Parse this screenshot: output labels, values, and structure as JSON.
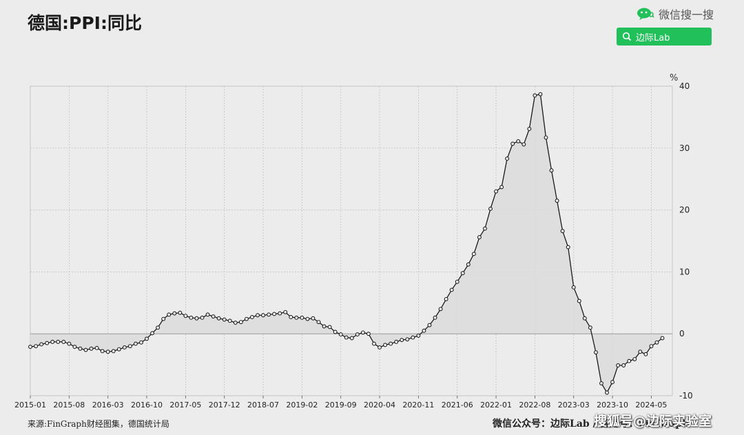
{
  "header": {
    "title": "德国:PPI:同比",
    "wechat_text": "微信搜一搜",
    "search_label": "边际Lab"
  },
  "footer": {
    "source": "来源:FinGraph财经图集，德国统计局",
    "right_text": "微信公众号：边际Lab / 备用号：FinGraph",
    "watermark": "搜狐号@边际实验室"
  },
  "colors": {
    "line": "#1a1a1a",
    "fill": "#dcdcdc",
    "grid": "#bdbdbd",
    "zero": "#9a9a9a",
    "brand_green": "#22c05a"
  },
  "chart_data": {
    "type": "line",
    "title": "德国:PPI:同比",
    "ylabel": "%",
    "y_position": "right",
    "grid": true,
    "fill_to_zero": true,
    "markers": true,
    "xlim": [
      2015.0,
      2024.65
    ],
    "ylim": [
      -10,
      40
    ],
    "yticks": [
      -10,
      0,
      10,
      20,
      30,
      40
    ],
    "xticks": [
      "2015-01",
      "2015-08",
      "2016-03",
      "2016-10",
      "2017-05",
      "2017-12",
      "2018-07",
      "2019-02",
      "2019-09",
      "2020-04",
      "2020-11",
      "2021-06",
      "2022-01",
      "2022-08",
      "2023-03",
      "2023-10",
      "2024-05"
    ],
    "start": "2015-01",
    "series": [
      {
        "values": [
          -2.1,
          -2.0,
          -1.7,
          -1.5,
          -1.3,
          -1.3,
          -1.3,
          -1.6,
          -2.1,
          -2.4,
          -2.6,
          -2.4,
          -2.3,
          -2.8,
          -2.9,
          -2.8,
          -2.5,
          -2.2,
          -2.0,
          -1.6,
          -1.4,
          -0.8,
          0.1,
          1.0,
          2.4,
          3.1,
          3.3,
          3.4,
          2.9,
          2.6,
          2.5,
          2.6,
          3.1,
          2.8,
          2.5,
          2.3,
          2.1,
          1.8,
          1.9,
          2.4,
          2.7,
          3.0,
          3.0,
          3.1,
          3.2,
          3.3,
          3.5,
          2.7,
          2.6,
          2.6,
          2.4,
          2.5,
          1.9,
          1.2,
          1.1,
          0.3,
          -0.1,
          -0.6,
          -0.7,
          -0.1,
          0.2,
          0.0,
          -1.6,
          -2.2,
          -1.8,
          -1.6,
          -1.3,
          -1.0,
          -0.9,
          -0.6,
          -0.3,
          0.5,
          1.4,
          2.6,
          4.0,
          5.6,
          7.1,
          8.4,
          9.8,
          11.2,
          12.9,
          15.6,
          17.0,
          20.2,
          23.0,
          23.7,
          28.3,
          30.7,
          31.1,
          30.6,
          33.1,
          38.5,
          38.7,
          31.7,
          26.4,
          21.5,
          16.6,
          14.0,
          7.5,
          5.3,
          2.5,
          1.0,
          -3.0,
          -8.0,
          -9.5,
          -7.8,
          -5.1,
          -5.1,
          -4.4,
          -4.1,
          -2.9,
          -3.3,
          -2.0,
          -1.4,
          -0.7
        ]
      }
    ]
  }
}
